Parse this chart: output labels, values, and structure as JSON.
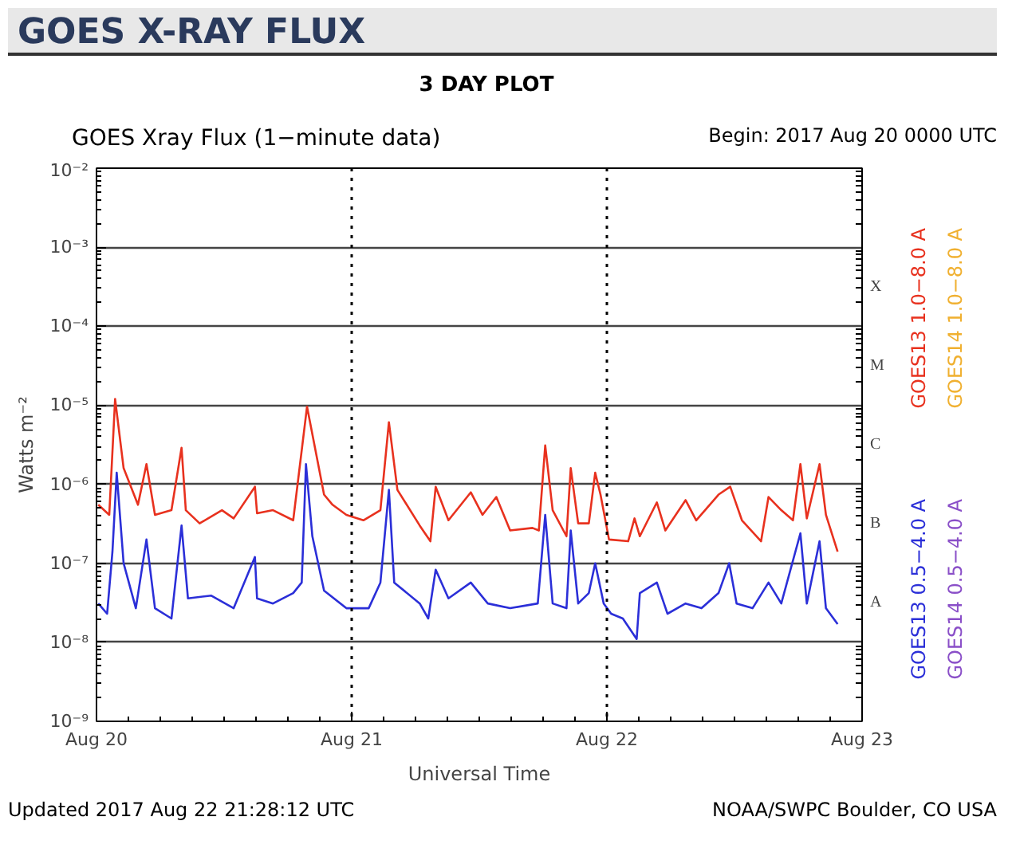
{
  "chart_data": {
    "type": "line",
    "title": "GOES X-RAY FLUX",
    "subtitle": "3 DAY PLOT",
    "annotations": [
      "GOES Xray Flux (1−minute data)",
      "Begin:  2017 Aug 20 0000 UTC",
      "Updated 2017 Aug 22 21:28:12 UTC",
      "NOAA/SWPC Boulder, CO USA",
      "A",
      "B",
      "C",
      "M",
      "X"
    ],
    "xlabel": "Universal Time",
    "ylabel": "Watts m⁻²",
    "log": "y",
    "grid": "y",
    "legend": "right",
    "line_style": "solid",
    "marker": "none",
    "xlim": [
      "2017-08-20",
      "2017-08-23"
    ],
    "xticks": [
      {
        "value": "2017-08-20",
        "label": "Aug 20"
      },
      {
        "value": "2017-08-21",
        "label": "Aug 21"
      },
      {
        "value": "2017-08-22",
        "label": "Aug 22"
      },
      {
        "value": "2017-08-23",
        "label": "Aug 23"
      }
    ],
    "ylim": [
      1e-09,
      0.01
    ],
    "yticks": [
      {
        "value": 1e-09,
        "label": "10⁻⁹"
      },
      {
        "value": 1e-08,
        "label": "10⁻⁸"
      },
      {
        "value": 1e-07,
        "label": "10⁻⁷"
      },
      {
        "value": 1e-06,
        "label": "10⁻⁶"
      },
      {
        "value": 1e-05,
        "label": "10⁻⁵"
      },
      {
        "value": 0.0001,
        "label": "10⁻⁴"
      },
      {
        "value": 0.001,
        "label": "10⁻³"
      },
      {
        "value": 0.01,
        "label": "10⁻²"
      }
    ],
    "ref_lines": [
      {
        "axis": "x",
        "value": "2017-08-21",
        "line_style": "dotted",
        "color": "#000000"
      },
      {
        "axis": "x",
        "value": "2017-08-22",
        "line_style": "dotted",
        "color": "#000000"
      }
    ],
    "series": [
      {
        "name": "GOES14 1.0−8.0 A",
        "color": "#f0b030"
      },
      {
        "name": "GOES13 1.0−8.0 A",
        "color": "#e8311e",
        "x": [
          "2017-08-20T00:10",
          "2017-08-20T01:12",
          "2017-08-20T01:45",
          "2017-08-20T02:33",
          "2017-08-20T03:54",
          "2017-08-20T04:42",
          "2017-08-20T05:30",
          "2017-08-20T07:03",
          "2017-08-20T08:00",
          "2017-08-20T08:24",
          "2017-08-20T09:42",
          "2017-08-20T11:48",
          "2017-08-20T12:54",
          "2017-08-20T14:54",
          "2017-08-20T15:06",
          "2017-08-20T16:36",
          "2017-08-20T18:30",
          "2017-08-20T19:48",
          "2017-08-20T21:24",
          "2017-08-20T22:12",
          "2017-08-20T23:30",
          "2017-08-21T01:06",
          "2017-08-21T02:42",
          "2017-08-21T03:30",
          "2017-08-21T04:18",
          "2017-08-21T06:24",
          "2017-08-21T07:24",
          "2017-08-21T07:54",
          "2017-08-21T09:06",
          "2017-08-21T11:12",
          "2017-08-21T12:18",
          "2017-08-21T13:36",
          "2017-08-21T14:54",
          "2017-08-21T17:00",
          "2017-08-21T17:36",
          "2017-08-21T18:12",
          "2017-08-21T18:54",
          "2017-08-21T20:12",
          "2017-08-21T20:36",
          "2017-08-21T21:18",
          "2017-08-21T22:18",
          "2017-08-21T22:54",
          "2017-08-21T23:24",
          "2017-08-22T00:12",
          "2017-08-22T02:00",
          "2017-08-22T02:36",
          "2017-08-22T03:06",
          "2017-08-22T04:42",
          "2017-08-22T05:30",
          "2017-08-22T07:24",
          "2017-08-22T08:24",
          "2017-08-22T10:30",
          "2017-08-22T11:36",
          "2017-08-22T12:42",
          "2017-08-22T14:30",
          "2017-08-22T15:12",
          "2017-08-22T16:24",
          "2017-08-22T17:30",
          "2017-08-22T18:12",
          "2017-08-22T18:48",
          "2017-08-22T20:00",
          "2017-08-22T20:36",
          "2017-08-22T21:42"
        ],
        "values": [
          5.5e-07,
          4.1e-07,
          1.2e-05,
          1.6e-06,
          5.5e-07,
          1.8e-06,
          4.1e-07,
          4.7e-07,
          2.9e-06,
          4.7e-07,
          3.2e-07,
          4.7e-07,
          3.7e-07,
          9.3e-07,
          4.3e-07,
          4.7e-07,
          3.5e-07,
          9.6e-06,
          7.4e-07,
          5.5e-07,
          4.1e-07,
          3.5e-07,
          4.7e-07,
          6.1e-06,
          8.5e-07,
          3e-07,
          1.9e-07,
          9.3e-07,
          3.5e-07,
          7.9e-07,
          4.1e-07,
          6.9e-07,
          2.6e-07,
          2.8e-07,
          2.6e-07,
          3.1e-06,
          4.7e-07,
          2.2e-07,
          1.6e-06,
          3.2e-07,
          3.2e-07,
          1.4e-06,
          7.4e-07,
          2e-07,
          1.9e-07,
          3.7e-07,
          2.2e-07,
          5.9e-07,
          2.6e-07,
          6.3e-07,
          3.5e-07,
          7.4e-07,
          9.3e-07,
          3.5e-07,
          1.9e-07,
          6.9e-07,
          4.7e-07,
          3.5e-07,
          1.8e-06,
          3.7e-07,
          1.8e-06,
          4.1e-07,
          1.4e-07
        ]
      },
      {
        "name": "GOES14 0.5−4.0 A",
        "color": "#8a4fc8"
      },
      {
        "name": "GOES13 0.5−4.0 A",
        "color": "#2b2fd8",
        "x": [
          "2017-08-20T00:10",
          "2017-08-20T01:00",
          "2017-08-20T01:30",
          "2017-08-20T01:54",
          "2017-08-20T02:33",
          "2017-08-20T03:42",
          "2017-08-20T04:42",
          "2017-08-20T05:30",
          "2017-08-20T07:03",
          "2017-08-20T08:00",
          "2017-08-20T08:36",
          "2017-08-20T10:48",
          "2017-08-20T12:54",
          "2017-08-20T14:54",
          "2017-08-20T15:06",
          "2017-08-20T16:36",
          "2017-08-20T18:30",
          "2017-08-20T19:18",
          "2017-08-20T19:42",
          "2017-08-20T20:18",
          "2017-08-20T21:24",
          "2017-08-20T23:30",
          "2017-08-21T01:36",
          "2017-08-21T02:42",
          "2017-08-21T03:30",
          "2017-08-21T04:00",
          "2017-08-21T06:24",
          "2017-08-21T07:12",
          "2017-08-21T07:54",
          "2017-08-21T09:06",
          "2017-08-21T11:12",
          "2017-08-21T12:48",
          "2017-08-21T14:54",
          "2017-08-21T17:30",
          "2017-08-21T18:12",
          "2017-08-21T18:54",
          "2017-08-21T20:12",
          "2017-08-21T20:36",
          "2017-08-21T21:18",
          "2017-08-21T22:18",
          "2017-08-21T22:54",
          "2017-08-21T23:42",
          "2017-08-22T00:24",
          "2017-08-22T01:30",
          "2017-08-22T02:48",
          "2017-08-22T03:06",
          "2017-08-22T04:42",
          "2017-08-22T05:42",
          "2017-08-22T07:24",
          "2017-08-22T08:54",
          "2017-08-22T10:30",
          "2017-08-22T11:30",
          "2017-08-22T12:12",
          "2017-08-22T13:42",
          "2017-08-22T15:12",
          "2017-08-22T16:24",
          "2017-08-22T18:12",
          "2017-08-22T18:48",
          "2017-08-22T20:00",
          "2017-08-22T20:36",
          "2017-08-22T21:42"
        ],
        "values": [
          3.1e-08,
          2.3e-08,
          1.4e-07,
          1.4e-06,
          1e-07,
          2.7e-08,
          2e-07,
          2.7e-08,
          2e-08,
          3e-07,
          3.6e-08,
          3.9e-08,
          2.7e-08,
          1.2e-07,
          3.6e-08,
          3.1e-08,
          4.2e-08,
          5.7e-08,
          1.8e-06,
          2.2e-07,
          4.5e-08,
          2.7e-08,
          2.7e-08,
          5.7e-08,
          8.5e-07,
          5.7e-08,
          3.1e-08,
          2e-08,
          8.3e-08,
          3.6e-08,
          5.7e-08,
          3.1e-08,
          2.7e-08,
          3.1e-08,
          4.1e-07,
          3.1e-08,
          2.7e-08,
          2.6e-07,
          3.1e-08,
          4.2e-08,
          1e-07,
          3.1e-08,
          2.3e-08,
          2e-08,
          1.1e-08,
          4.2e-08,
          5.7e-08,
          2.3e-08,
          3.1e-08,
          2.7e-08,
          4.2e-08,
          1e-07,
          3.1e-08,
          2.7e-08,
          5.7e-08,
          3.1e-08,
          2.4e-07,
          3.1e-08,
          1.9e-07,
          2.7e-08,
          1.7e-08
        ]
      }
    ]
  }
}
